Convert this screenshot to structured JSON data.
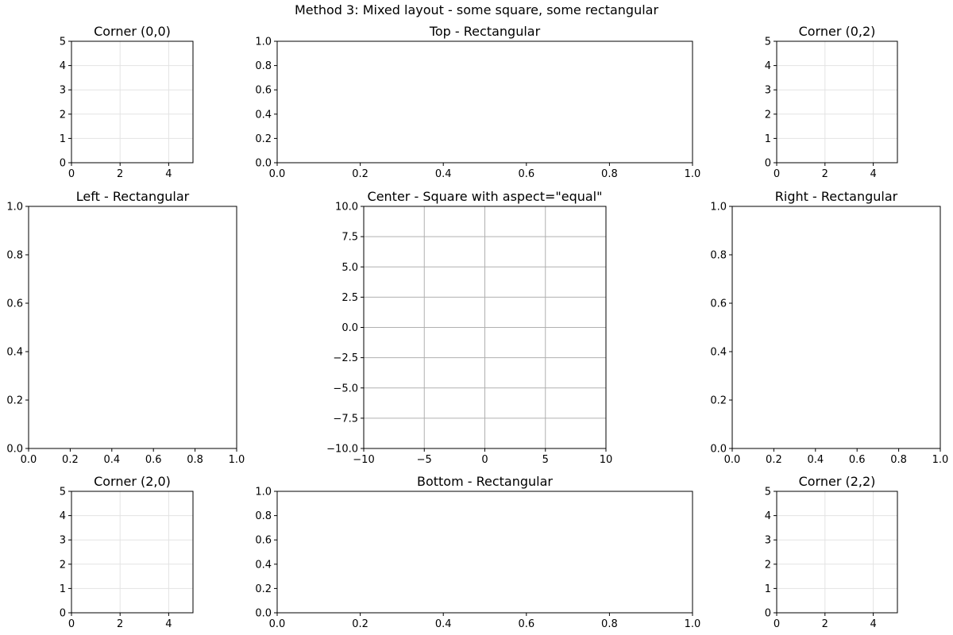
{
  "figure": {
    "suptitle": "Method 3: Mixed layout - some square, some rectangular"
  },
  "chart_data": [
    {
      "name": "corner-0-0",
      "type": "line",
      "title": "Corner (0,0)",
      "xlim": [
        0,
        5
      ],
      "ylim": [
        0,
        5
      ],
      "xticks": [
        0,
        2,
        4
      ],
      "xtick_labels": [
        "0",
        "2",
        "4"
      ],
      "yticks": [
        0,
        1,
        2,
        3,
        4,
        5
      ],
      "ytick_labels": [
        "0",
        "1",
        "2",
        "3",
        "4",
        "5"
      ],
      "grid": "light",
      "series": []
    },
    {
      "name": "top",
      "type": "line",
      "title": "Top - Rectangular",
      "xlim": [
        0,
        1
      ],
      "ylim": [
        0,
        1
      ],
      "xticks": [
        0,
        0.2,
        0.4,
        0.6,
        0.8,
        1.0
      ],
      "xtick_labels": [
        "0.0",
        "0.2",
        "0.4",
        "0.6",
        "0.8",
        "1.0"
      ],
      "yticks": [
        0,
        0.2,
        0.4,
        0.6,
        0.8,
        1.0
      ],
      "ytick_labels": [
        "0.0",
        "0.2",
        "0.4",
        "0.6",
        "0.8",
        "1.0"
      ],
      "grid": "none",
      "series": []
    },
    {
      "name": "corner-0-2",
      "type": "line",
      "title": "Corner (0,2)",
      "xlim": [
        0,
        5
      ],
      "ylim": [
        0,
        5
      ],
      "xticks": [
        0,
        2,
        4
      ],
      "xtick_labels": [
        "0",
        "2",
        "4"
      ],
      "yticks": [
        0,
        1,
        2,
        3,
        4,
        5
      ],
      "ytick_labels": [
        "0",
        "1",
        "2",
        "3",
        "4",
        "5"
      ],
      "grid": "light",
      "series": []
    },
    {
      "name": "left",
      "type": "line",
      "title": "Left - Rectangular",
      "xlim": [
        0,
        1
      ],
      "ylim": [
        0,
        1
      ],
      "xticks": [
        0,
        0.2,
        0.4,
        0.6,
        0.8,
        1.0
      ],
      "xtick_labels": [
        "0.0",
        "0.2",
        "0.4",
        "0.6",
        "0.8",
        "1.0"
      ],
      "yticks": [
        0,
        0.2,
        0.4,
        0.6,
        0.8,
        1.0
      ],
      "ytick_labels": [
        "0.0",
        "0.2",
        "0.4",
        "0.6",
        "0.8",
        "1.0"
      ],
      "grid": "none",
      "series": []
    },
    {
      "name": "center",
      "type": "line",
      "title": "Center - Square with aspect=\"equal\"",
      "xlim": [
        -10,
        10
      ],
      "ylim": [
        -10,
        10
      ],
      "xticks": [
        -10,
        -5,
        0,
        5,
        10
      ],
      "xtick_labels": [
        "−10",
        "−5",
        "0",
        "5",
        "10"
      ],
      "yticks": [
        -10,
        -7.5,
        -5,
        -2.5,
        0,
        2.5,
        5,
        7.5,
        10
      ],
      "ytick_labels": [
        "−10.0",
        "−7.5",
        "−5.0",
        "−2.5",
        "0.0",
        "2.5",
        "5.0",
        "7.5",
        "10.0"
      ],
      "grid": "dark",
      "series": []
    },
    {
      "name": "right",
      "type": "line",
      "title": "Right - Rectangular",
      "xlim": [
        0,
        1
      ],
      "ylim": [
        0,
        1
      ],
      "xticks": [
        0,
        0.2,
        0.4,
        0.6,
        0.8,
        1.0
      ],
      "xtick_labels": [
        "0.0",
        "0.2",
        "0.4",
        "0.6",
        "0.8",
        "1.0"
      ],
      "yticks": [
        0,
        0.2,
        0.4,
        0.6,
        0.8,
        1.0
      ],
      "ytick_labels": [
        "0.0",
        "0.2",
        "0.4",
        "0.6",
        "0.8",
        "1.0"
      ],
      "grid": "none",
      "series": []
    },
    {
      "name": "corner-2-0",
      "type": "line",
      "title": "Corner (2,0)",
      "xlim": [
        0,
        5
      ],
      "ylim": [
        0,
        5
      ],
      "xticks": [
        0,
        2,
        4
      ],
      "xtick_labels": [
        "0",
        "2",
        "4"
      ],
      "yticks": [
        0,
        1,
        2,
        3,
        4,
        5
      ],
      "ytick_labels": [
        "0",
        "1",
        "2",
        "3",
        "4",
        "5"
      ],
      "grid": "light",
      "series": []
    },
    {
      "name": "bottom",
      "type": "line",
      "title": "Bottom - Rectangular",
      "xlim": [
        0,
        1
      ],
      "ylim": [
        0,
        1
      ],
      "xticks": [
        0,
        0.2,
        0.4,
        0.6,
        0.8,
        1.0
      ],
      "xtick_labels": [
        "0.0",
        "0.2",
        "0.4",
        "0.6",
        "0.8",
        "1.0"
      ],
      "yticks": [
        0,
        0.2,
        0.4,
        0.6,
        0.8,
        1.0
      ],
      "ytick_labels": [
        "0.0",
        "0.2",
        "0.4",
        "0.6",
        "0.8",
        "1.0"
      ],
      "grid": "none",
      "series": []
    },
    {
      "name": "corner-2-2",
      "type": "line",
      "title": "Corner (2,2)",
      "xlim": [
        0,
        5
      ],
      "ylim": [
        0,
        5
      ],
      "xticks": [
        0,
        2,
        4
      ],
      "xtick_labels": [
        "0",
        "2",
        "4"
      ],
      "yticks": [
        0,
        1,
        2,
        3,
        4,
        5
      ],
      "ytick_labels": [
        "0",
        "1",
        "2",
        "3",
        "4",
        "5"
      ],
      "grid": "light",
      "series": []
    }
  ]
}
